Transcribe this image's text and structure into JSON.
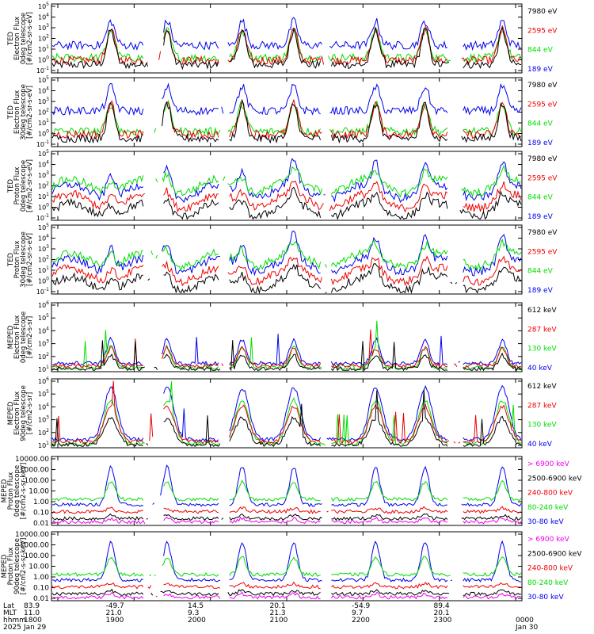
{
  "colors": {
    "black": "#000000",
    "red": "#ee0000",
    "green": "#00dd00",
    "blue": "#0000ee",
    "magenta": "#ee00ee"
  },
  "chart_data": [
    {
      "type": "line",
      "ylabel": [
        "TED",
        "Electron Flux",
        "0deg telescope",
        "[#/cm2-sr-s-eV]"
      ],
      "log_exponents": [
        -1,
        0,
        1,
        2,
        3,
        4,
        5
      ],
      "legend": [
        {
          "label": "7980 eV",
          "color": "#000000"
        },
        {
          "label": "2595 eV",
          "color": "#ee0000"
        },
        {
          "label": "844 eV",
          "color": "#00dd00"
        },
        {
          "label": "189 eV",
          "color": "#0000ee"
        }
      ]
    },
    {
      "type": "line",
      "ylabel": [
        "TED",
        "Electron Flux",
        "30deg telescope",
        "[#/cm2-sr-s-eV]"
      ],
      "log_exponents": [
        -1,
        0,
        1,
        2,
        3,
        4,
        5
      ],
      "legend": [
        {
          "label": "7980 eV",
          "color": "#000000"
        },
        {
          "label": "2595 eV",
          "color": "#ee0000"
        },
        {
          "label": "844 eV",
          "color": "#00dd00"
        },
        {
          "label": "189 eV",
          "color": "#0000ee"
        }
      ]
    },
    {
      "type": "line",
      "ylabel": [
        "TED",
        "Proton Flux",
        "0deg telescope",
        "[#/cm2-sr-s-eV]"
      ],
      "log_exponents": [
        -1,
        0,
        1,
        2,
        3,
        4,
        5
      ],
      "legend": [
        {
          "label": "7980 eV",
          "color": "#000000"
        },
        {
          "label": "2595 eV",
          "color": "#ee0000"
        },
        {
          "label": "844 eV",
          "color": "#00dd00"
        },
        {
          "label": "189 eV",
          "color": "#0000ee"
        }
      ]
    },
    {
      "type": "line",
      "ylabel": [
        "TED",
        "Proton Flux",
        "30deg telescope",
        "[#/cm2-sr-s-eV]"
      ],
      "log_exponents": [
        -1,
        0,
        1,
        2,
        3,
        4,
        5
      ],
      "legend": [
        {
          "label": "7980 eV",
          "color": "#000000"
        },
        {
          "label": "2595 eV",
          "color": "#ee0000"
        },
        {
          "label": "844 eV",
          "color": "#00dd00"
        },
        {
          "label": "189 eV",
          "color": "#0000ee"
        }
      ]
    },
    {
      "type": "line",
      "ylabel": [
        "MEPED",
        "Electron Flux",
        "0deg telescope",
        "[#/cm2-s-sr]"
      ],
      "log_exponents": [
        1,
        2,
        3,
        4,
        5,
        6
      ],
      "legend": [
        {
          "label": "612 keV",
          "color": "#000000"
        },
        {
          "label": "287 keV",
          "color": "#ee0000"
        },
        {
          "label": "130 keV",
          "color": "#00dd00"
        },
        {
          "label": "40 keV",
          "color": "#0000ee"
        }
      ]
    },
    {
      "type": "line",
      "ylabel": [
        "MEPED",
        "Electron Flux",
        "90deg telescope",
        "[#/cm2-s-sr]"
      ],
      "log_exponents": [
        1,
        2,
        3,
        4,
        5,
        6
      ],
      "legend": [
        {
          "label": "612 keV",
          "color": "#000000"
        },
        {
          "label": "287 keV",
          "color": "#ee0000"
        },
        {
          "label": "130 keV",
          "color": "#00dd00"
        },
        {
          "label": "40 keV",
          "color": "#0000ee"
        }
      ]
    },
    {
      "type": "line",
      "ylabel": [
        "MEPED",
        "Proton Flux",
        "0deg telescope",
        "[#/cm2-s-sr-keV]"
      ],
      "tick_labels": [
        "0.01",
        "0.10",
        "1.00",
        "10.00",
        "100.00",
        "1000.00",
        "10000.00"
      ],
      "legend": [
        {
          "label": "> 6900 keV",
          "color": "#ee00ee"
        },
        {
          "label": "2500-6900 keV",
          "color": "#000000"
        },
        {
          "label": "240-800 keV",
          "color": "#ee0000"
        },
        {
          "label": "80-240 keV",
          "color": "#00dd00"
        },
        {
          "label": "30-80 keV",
          "color": "#0000ee"
        }
      ]
    },
    {
      "type": "line",
      "ylabel": [
        "MEPED",
        "Proton Flux",
        "90deg telescope",
        "[#/cm2-s-sr-keV]"
      ],
      "tick_labels": [
        "0.01",
        "0.10",
        "1.00",
        "10.00",
        "100.00",
        "1000.00",
        "10000.00"
      ],
      "legend": [
        {
          "label": "> 6900 keV",
          "color": "#ee00ee"
        },
        {
          "label": "2500-6900 keV",
          "color": "#000000"
        },
        {
          "label": "240-800 keV",
          "color": "#ee0000"
        },
        {
          "label": "80-240 keV",
          "color": "#00dd00"
        },
        {
          "label": "30-80 keV",
          "color": "#0000ee"
        }
      ]
    }
  ],
  "x_axis": {
    "row_labels": [
      "Lat",
      "MLT",
      "hhmm",
      "2025"
    ],
    "columns": [
      {
        "lat": "83.9",
        "mlt": "11.0",
        "hhmm": "1800",
        "date": "Jan 29"
      },
      {
        "lat": "-49.7",
        "mlt": "21.0",
        "hhmm": "1900",
        "date": ""
      },
      {
        "lat": "14.5",
        "mlt": "9.3",
        "hhmm": "2000",
        "date": ""
      },
      {
        "lat": "20.1",
        "mlt": "21.3",
        "hhmm": "2100",
        "date": ""
      },
      {
        "lat": "-54.9",
        "mlt": "9.7",
        "hhmm": "2200",
        "date": ""
      },
      {
        "lat": "89.4",
        "mlt": "20.1",
        "hhmm": "2300",
        "date": ""
      },
      {
        "lat": "",
        "mlt": "",
        "hhmm": "0000",
        "date": "Jan 30"
      }
    ]
  }
}
